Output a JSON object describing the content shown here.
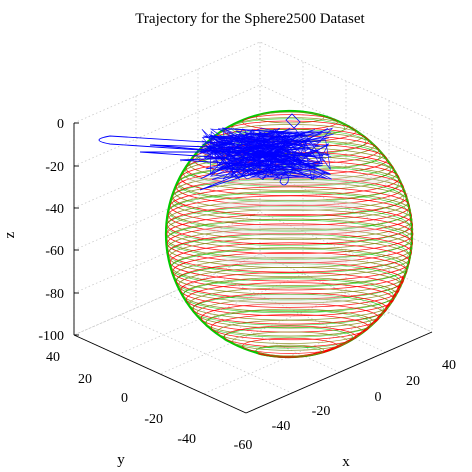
{
  "chart_data": {
    "type": "line3d",
    "title": "Trajectory for the Sphere2500 Dataset",
    "xlabel": "x",
    "ylabel": "y",
    "zlabel": "z",
    "x_ticks": [
      "-60",
      "-40",
      "-20",
      "0",
      "20",
      "40"
    ],
    "y_ticks": [
      "40",
      "20",
      "0",
      "-20",
      "-40"
    ],
    "z_ticks": [
      "0",
      "-20",
      "-40",
      "-60",
      "-80",
      "-100"
    ],
    "zlim": [
      -100,
      0
    ],
    "grid": true,
    "series": [
      {
        "role": "ground-truth",
        "color": "#ff0000"
      },
      {
        "role": "estimate",
        "color": "#00cc00"
      },
      {
        "role": "odometry",
        "color": "#0000ff"
      }
    ],
    "colors": {
      "ground_truth": "#ff0000",
      "estimate": "#00cc00",
      "odometry": "#0000ff",
      "grid": "#c8c8c8"
    }
  }
}
